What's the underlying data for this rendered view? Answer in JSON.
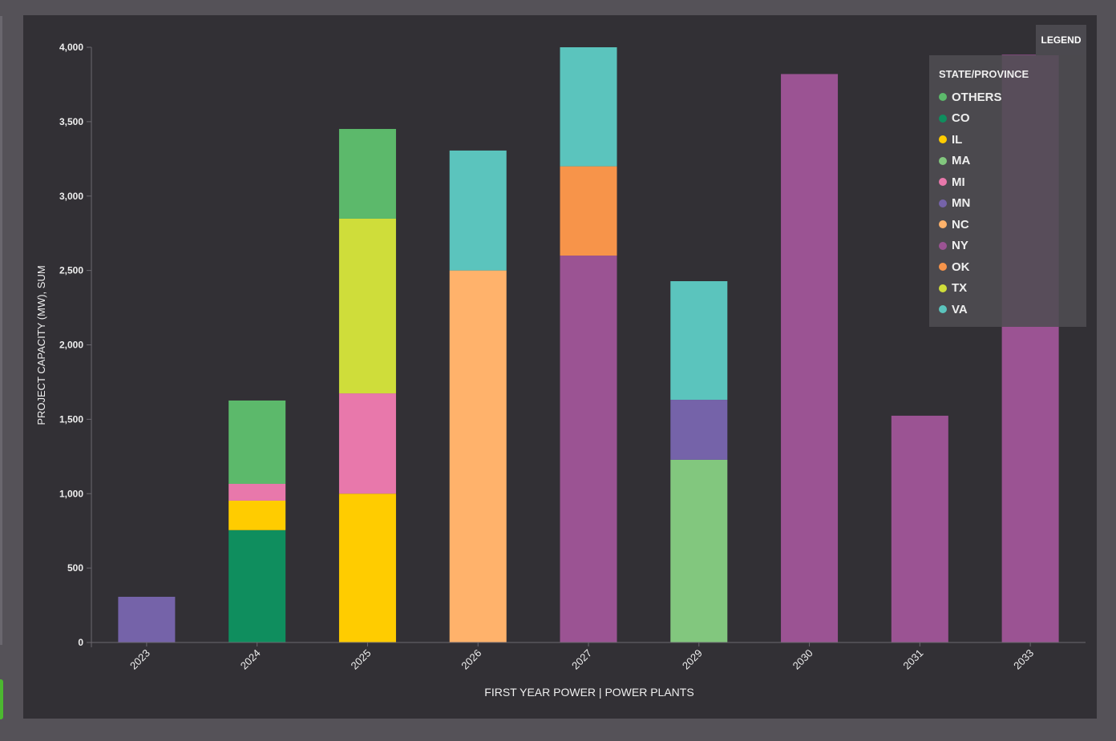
{
  "chart_data": {
    "type": "bar",
    "stacked": true,
    "xlabel": "FIRST YEAR POWER | POWER PLANTS",
    "ylabel": "PROJECT CAPACITY (MW), SUM",
    "ylim": [
      0,
      4000
    ],
    "yticks": [
      "0",
      "500",
      "1,000",
      "1,500",
      "2,000",
      "2,500",
      "3,000",
      "3,500",
      "4,000"
    ],
    "ytick_values": [
      0,
      500,
      1000,
      1500,
      2000,
      2500,
      3000,
      3500,
      4000
    ],
    "categories": [
      "2023",
      "2024",
      "2025",
      "2026",
      "2027",
      "2029",
      "2030",
      "2031",
      "2033"
    ],
    "legend": {
      "tab_label": "LEGEND",
      "title": "STATE/PROVINCE",
      "placement": "top-right"
    },
    "series": [
      {
        "name": "OTHERS",
        "color": "#5cb96b",
        "values": [
          0,
          560,
          603,
          0,
          0,
          0,
          0,
          0,
          0
        ]
      },
      {
        "name": "CO",
        "color": "#0f8e5e",
        "values": [
          0,
          755,
          0,
          0,
          0,
          0,
          0,
          0,
          0
        ]
      },
      {
        "name": "IL",
        "color": "#ffcc00",
        "values": [
          0,
          198,
          1000,
          0,
          0,
          0,
          0,
          0,
          0
        ]
      },
      {
        "name": "MA",
        "color": "#82c77e",
        "values": [
          0,
          0,
          0,
          0,
          0,
          1228,
          0,
          0,
          0
        ]
      },
      {
        "name": "MI",
        "color": "#e878ab",
        "values": [
          0,
          113,
          674,
          0,
          0,
          0,
          0,
          0,
          0
        ]
      },
      {
        "name": "MN",
        "color": "#7563a9",
        "values": [
          307,
          0,
          0,
          0,
          0,
          403,
          0,
          0,
          0
        ]
      },
      {
        "name": "NC",
        "color": "#ffb26b",
        "values": [
          0,
          0,
          0,
          2500,
          0,
          0,
          0,
          0,
          0
        ]
      },
      {
        "name": "NY",
        "color": "#9b5393",
        "values": [
          0,
          0,
          0,
          0,
          2600,
          0,
          3820,
          1524,
          3950
        ]
      },
      {
        "name": "OK",
        "color": "#f7944a",
        "values": [
          0,
          0,
          0,
          0,
          600,
          0,
          0,
          0,
          0
        ]
      },
      {
        "name": "TX",
        "color": "#cfdd3a",
        "values": [
          0,
          0,
          1174,
          0,
          0,
          0,
          0,
          0,
          0
        ]
      },
      {
        "name": "VA",
        "color": "#5bc4bd",
        "values": [
          0,
          0,
          0,
          806,
          800,
          797,
          0,
          0,
          0
        ]
      }
    ],
    "stack_order": [
      "CO",
      "IL",
      "MI",
      "MA",
      "MN",
      "NC",
      "NY",
      "OK",
      "TX",
      "OTHERS",
      "VA"
    ]
  }
}
